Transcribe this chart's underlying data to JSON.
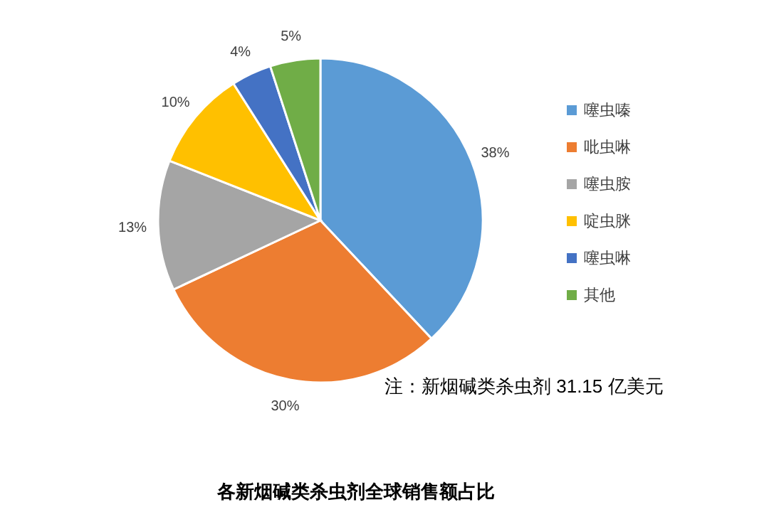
{
  "chart_data": {
    "type": "pie",
    "title": "各新烟碱类杀虫剂全球销售额占比",
    "categories": [
      "噻虫嗪",
      "吡虫啉",
      "噻虫胺",
      "啶虫脒",
      "噻虫啉",
      "其他"
    ],
    "values": [
      38,
      30,
      13,
      10,
      4,
      5
    ],
    "colors": [
      "#5b9bd5",
      "#ed7d31",
      "#a5a5a5",
      "#ffc000",
      "#4472c4",
      "#70ad47"
    ],
    "value_labels": [
      "38%",
      "30%",
      "13%",
      "10%",
      "4%",
      "5%"
    ],
    "legend": "right",
    "annotations": [
      "注：新烟碱类杀虫剂 31.15 亿美元"
    ]
  }
}
